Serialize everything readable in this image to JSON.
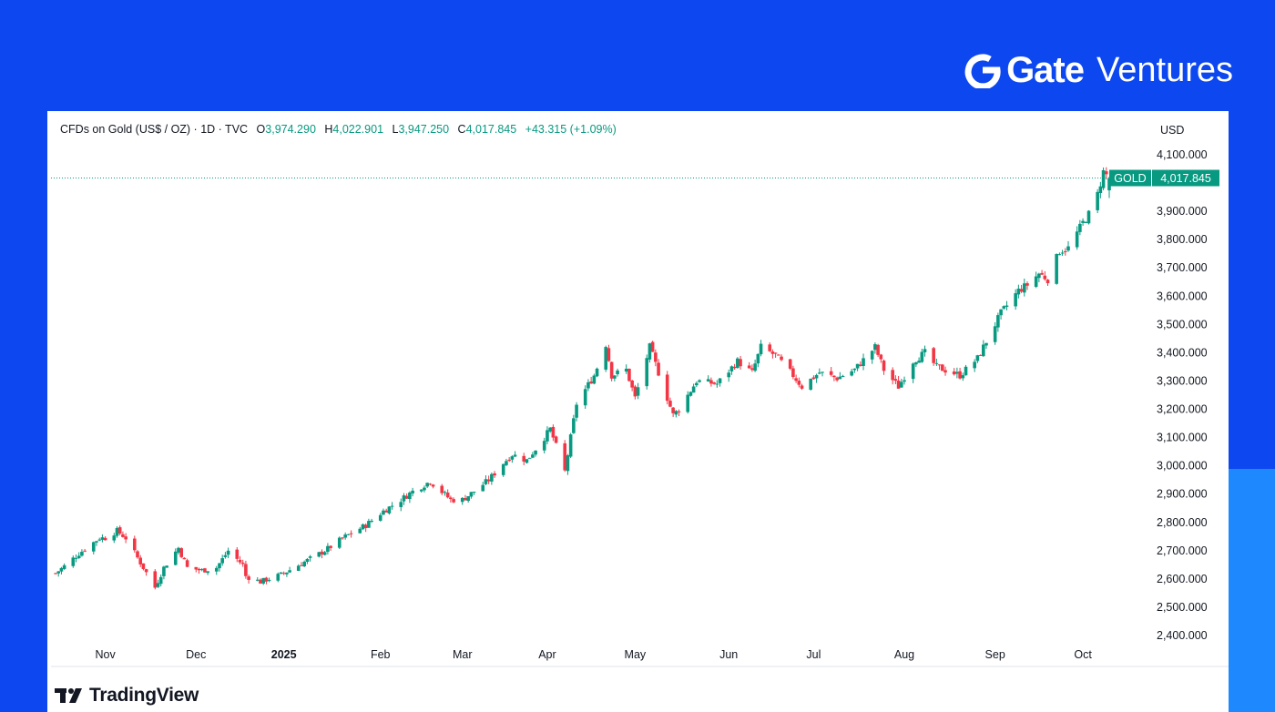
{
  "brand": {
    "name": "Gate",
    "suffix": "Ventures"
  },
  "legend": {
    "symbol": "CFDs on Gold (US$ / OZ) · 1D · TVC",
    "open_label": "O",
    "open": "3,974.290",
    "high_label": "H",
    "high": "4,022.901",
    "low_label": "L",
    "low": "3,947.250",
    "close_label": "C",
    "close": "4,017.845",
    "change": "+43.315 (+1.09%)"
  },
  "price_tag": {
    "ticker": "GOLD",
    "value": "4,017.845"
  },
  "colors": {
    "up": "#089981",
    "down": "#f23645",
    "background": "#0d47f0",
    "accent": "#1e88ff"
  },
  "footer": {
    "logo_text": "TradingView"
  },
  "chart_data": {
    "type": "candlestick",
    "title": "CFDs on Gold (US$ / OZ) · 1D · TVC",
    "ylabel": "USD",
    "ylim": [
      2360,
      4180
    ],
    "y_ticks": [
      "4,100.000",
      "3,900.000",
      "3,800.000",
      "3,700.000",
      "3,600.000",
      "3,500.000",
      "3,400.000",
      "3,300.000",
      "3,200.000",
      "3,100.000",
      "3,000.000",
      "2,900.000",
      "2,800.000",
      "2,700.000",
      "2,600.000",
      "2,500.000",
      "2,400.000"
    ],
    "x_ticks": [
      {
        "label": "Nov",
        "date": "2024-11-01"
      },
      {
        "label": "Dec",
        "date": "2024-12-02"
      },
      {
        "label": "2025",
        "date": "2025-01-01"
      },
      {
        "label": "Feb",
        "date": "2025-02-03"
      },
      {
        "label": "Mar",
        "date": "2025-03-03"
      },
      {
        "label": "Apr",
        "date": "2025-04-01"
      },
      {
        "label": "May",
        "date": "2025-05-01"
      },
      {
        "label": "Jun",
        "date": "2025-06-02"
      },
      {
        "label": "Jul",
        "date": "2025-07-01"
      },
      {
        "label": "Aug",
        "date": "2025-08-01"
      },
      {
        "label": "Sep",
        "date": "2025-09-01"
      },
      {
        "label": "Oct",
        "date": "2025-10-01"
      }
    ],
    "x_range": [
      "2024-10-15",
      "2025-10-10"
    ],
    "last_value": 4017.845,
    "close_anchors": [
      [
        "2024-10-15",
        2620
      ],
      [
        "2024-10-18",
        2645
      ],
      [
        "2024-10-23",
        2690
      ],
      [
        "2024-10-30",
        2745
      ],
      [
        "2024-11-01",
        2745
      ],
      [
        "2024-11-05",
        2770
      ],
      [
        "2024-11-08",
        2745
      ],
      [
        "2024-11-14",
        2640
      ],
      [
        "2024-11-18",
        2570
      ],
      [
        "2024-11-21",
        2640
      ],
      [
        "2024-11-26",
        2710
      ],
      [
        "2024-11-29",
        2640
      ],
      [
        "2024-12-04",
        2630
      ],
      [
        "2024-12-09",
        2640
      ],
      [
        "2024-12-13",
        2700
      ],
      [
        "2024-12-18",
        2650
      ],
      [
        "2024-12-19",
        2610
      ],
      [
        "2024-12-24",
        2590
      ],
      [
        "2024-12-31",
        2615
      ],
      [
        "2025-01-08",
        2660
      ],
      [
        "2025-01-15",
        2700
      ],
      [
        "2025-01-22",
        2750
      ],
      [
        "2025-01-29",
        2790
      ],
      [
        "2025-02-04",
        2840
      ],
      [
        "2025-02-10",
        2880
      ],
      [
        "2025-02-14",
        2910
      ],
      [
        "2025-02-20",
        2945
      ],
      [
        "2025-02-27",
        2880
      ],
      [
        "2025-03-03",
        2880
      ],
      [
        "2025-03-07",
        2910
      ],
      [
        "2025-03-12",
        2950
      ],
      [
        "2025-03-17",
        3010
      ],
      [
        "2025-03-20",
        3040
      ],
      [
        "2025-03-25",
        3020
      ],
      [
        "2025-03-31",
        3100
      ],
      [
        "2025-04-02",
        3130
      ],
      [
        "2025-04-07",
        2980
      ],
      [
        "2025-04-11",
        3220
      ],
      [
        "2025-04-17",
        3320
      ],
      [
        "2025-04-21",
        3430
      ],
      [
        "2025-04-23",
        3320
      ],
      [
        "2025-04-28",
        3340
      ],
      [
        "2025-05-01",
        3240
      ],
      [
        "2025-05-06",
        3420
      ],
      [
        "2025-05-09",
        3330
      ],
      [
        "2025-05-14",
        3180
      ],
      [
        "2025-05-16",
        3200
      ],
      [
        "2025-05-22",
        3300
      ],
      [
        "2025-05-29",
        3290
      ],
      [
        "2025-06-05",
        3370
      ],
      [
        "2025-06-10",
        3330
      ],
      [
        "2025-06-13",
        3420
      ],
      [
        "2025-06-18",
        3390
      ],
      [
        "2025-06-24",
        3320
      ],
      [
        "2025-06-27",
        3280
      ],
      [
        "2025-07-03",
        3330
      ],
      [
        "2025-07-09",
        3310
      ],
      [
        "2025-07-15",
        3340
      ],
      [
        "2025-07-22",
        3420
      ],
      [
        "2025-07-25",
        3340
      ],
      [
        "2025-07-30",
        3280
      ],
      [
        "2025-08-04",
        3370
      ],
      [
        "2025-08-08",
        3400
      ],
      [
        "2025-08-12",
        3350
      ],
      [
        "2025-08-20",
        3320
      ],
      [
        "2025-08-26",
        3380
      ],
      [
        "2025-08-29",
        3440
      ],
      [
        "2025-09-03",
        3540
      ],
      [
        "2025-09-09",
        3620
      ],
      [
        "2025-09-12",
        3640
      ],
      [
        "2025-09-16",
        3680
      ],
      [
        "2025-09-19",
        3660
      ],
      [
        "2025-09-23",
        3760
      ],
      [
        "2025-09-26",
        3770
      ],
      [
        "2025-10-01",
        3860
      ],
      [
        "2025-10-03",
        3890
      ],
      [
        "2025-10-06",
        3960
      ],
      [
        "2025-10-08",
        4040
      ],
      [
        "2025-10-10",
        4017.845
      ]
    ]
  }
}
